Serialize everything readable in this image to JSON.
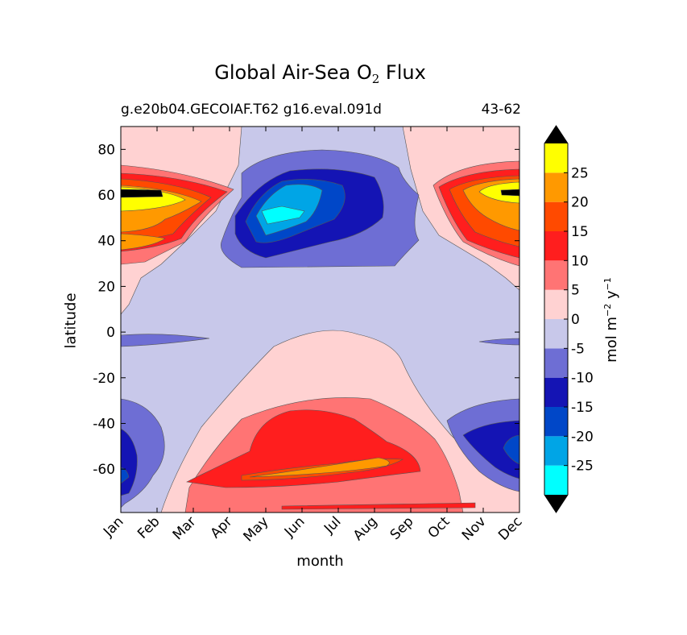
{
  "chart_data": {
    "type": "heatmap",
    "subtype": "filled-contour",
    "title_main": "Global Air-Sea O",
    "title_sub": "2",
    "title_tail": " Flux",
    "subtitle_left": "g.e20b04.GECOIAF.T62 g16.eval.091d",
    "subtitle_right": "43-62",
    "xlabel": "month",
    "ylabel": "latitude",
    "x_ticks": [
      "Jan",
      "Feb",
      "Mar",
      "Apr",
      "May",
      "Jun",
      "Jul",
      "Aug",
      "Sep",
      "Oct",
      "Nov",
      "Dec"
    ],
    "ylim": [
      -79,
      90
    ],
    "y_ticks": [
      80,
      60,
      40,
      20,
      0,
      -20,
      -40,
      -60
    ],
    "colorbar": {
      "label_main": "mol m",
      "label_exp1": "−2",
      "label_mid": "  y",
      "label_exp2": "−1",
      "levels": [
        -30,
        -25,
        -20,
        -15,
        -10,
        -5,
        0,
        5,
        10,
        15,
        20,
        25,
        30
      ],
      "tick_values": [
        25,
        20,
        15,
        10,
        5,
        0,
        -5,
        -10,
        -15,
        -20,
        -25
      ],
      "tick_labels": [
        "25",
        "20",
        "15",
        "10",
        "5",
        "0",
        "-5",
        "-10",
        "-15",
        "-20",
        "-25"
      ],
      "colors": [
        "#00ffff",
        "#00a5e6",
        "#0047c8",
        "#1414b4",
        "#6e6ed4",
        "#c8c8ea",
        "#ffd2d2",
        "#ff7474",
        "#ff1e1e",
        "#ff4a00",
        "#ff9900",
        "#ffff00"
      ],
      "under_color": "#000000",
      "over_color": "#000000",
      "extend": "both"
    },
    "regions": [
      {
        "name": "background",
        "band": "-5 to 0"
      },
      {
        "name": "nh-spring-bloom",
        "band": "0 to 5"
      },
      {
        "name": "nh-winter-outgassing-jan",
        "band": "10 to 30+"
      },
      {
        "name": "nh-winter-outgassing-dec",
        "band": "10 to 30+"
      },
      {
        "name": "nh-summer-uptake",
        "band": "-5 to -30"
      },
      {
        "name": "sh-summer-outgassing",
        "band": "0 to 20"
      },
      {
        "name": "sh-winter-uptake-jan",
        "band": "-5 to -15"
      },
      {
        "name": "sh-winter-uptake-dec",
        "band": "-5 to -20"
      }
    ]
  }
}
